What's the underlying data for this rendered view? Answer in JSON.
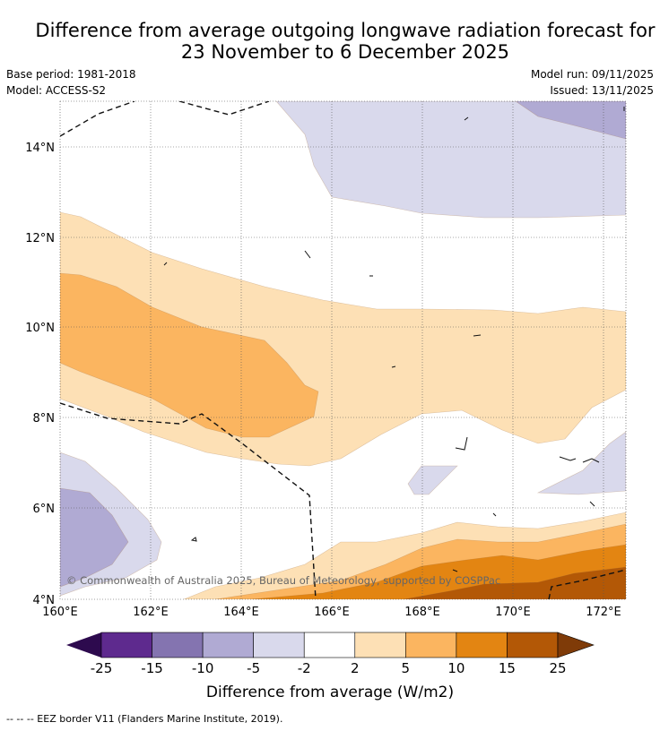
{
  "title": {
    "line1": "Difference from average outgoing longwave radiation forecast for",
    "line2": "23 November to 6 December 2025"
  },
  "meta": {
    "base_period": "Base period: 1981-2018",
    "model": "Model: ACCESS-S2",
    "model_run": "Model run: 09/11/2025",
    "issued": "Issued: 13/11/2025"
  },
  "map": {
    "lat_ticks": [
      "14°N",
      "12°N",
      "10°N",
      "8°N",
      "6°N",
      "4°N"
    ],
    "lon_ticks": [
      "160°E",
      "162°E",
      "164°E",
      "166°E",
      "168°E",
      "170°E",
      "172°E"
    ],
    "copyright": "© Commonwealth of Australia 2025, Bureau of Meteorology, supported by COSPPac"
  },
  "colorbar": {
    "tick_labels": [
      "-25",
      "-15",
      "-10",
      "-5",
      "-2",
      "2",
      "5",
      "10",
      "15",
      "25"
    ],
    "label": "Difference from average (W/m2)",
    "colors": {
      "lt_-25": "#2d0a4e",
      "-25_-15": "#5e2a8e",
      "-15_-10": "#8474b0",
      "-10_-5": "#b0aad3",
      "-5_-2": "#d9d9ec",
      "-2_2": "#ffffff",
      "2_5": "#fde0b5",
      "5_10": "#fbb560",
      "10_15": "#e38512",
      "15_25": "#b35806",
      "gt_25": "#7f3b08"
    }
  },
  "footer": {
    "legend": "-- -- -- EEZ border V11 (Flanders Marine Institute, 2019)."
  }
}
